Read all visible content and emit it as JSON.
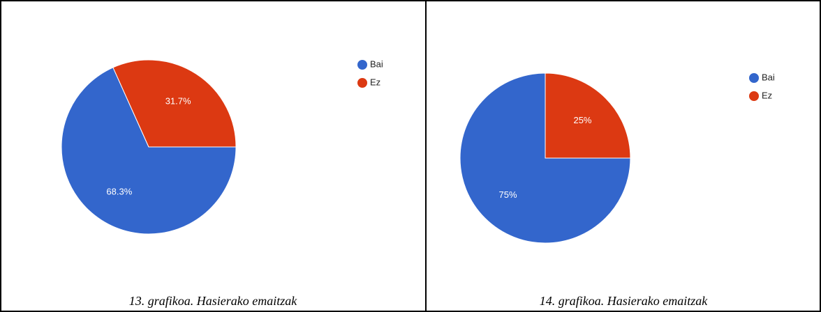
{
  "chart_data": [
    {
      "type": "pie",
      "categories": [
        "Bai",
        "Ez"
      ],
      "values": [
        68.3,
        31.7
      ],
      "value_labels": [
        "68.3%",
        "31.7%"
      ],
      "colors": [
        "#3366cc",
        "#dc3912"
      ],
      "legend": "right",
      "caption": "13. grafikoa. Hasierako emaitzak"
    },
    {
      "type": "pie",
      "categories": [
        "Bai",
        "Ez"
      ],
      "values": [
        75,
        25
      ],
      "value_labels": [
        "75%",
        "25%"
      ],
      "colors": [
        "#3366cc",
        "#dc3912"
      ],
      "legend": "right",
      "caption": "14. grafikoa. Hasierako emaitzak"
    }
  ]
}
